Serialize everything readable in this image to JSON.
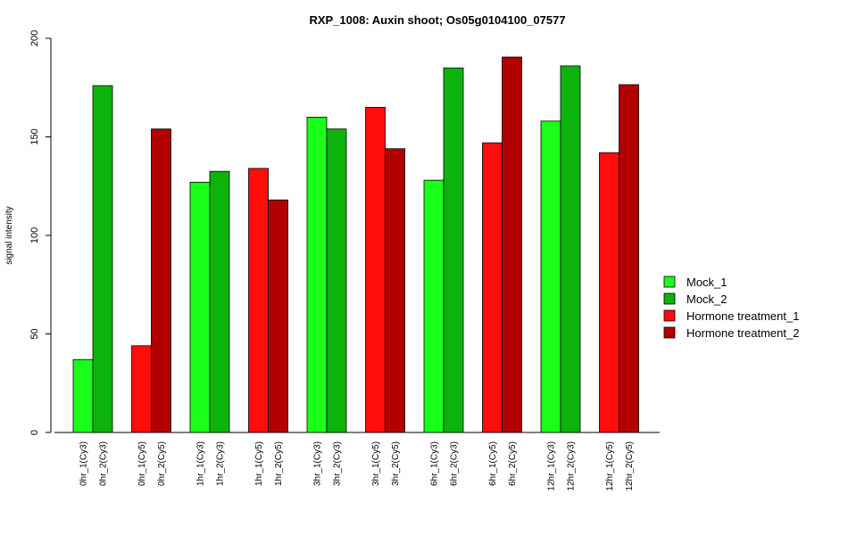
{
  "chart_data": {
    "type": "bar",
    "title": "RXP_1008: Auxin shoot; Os05g0104100_07577",
    "xlabel": "",
    "ylabel": "signal intensity",
    "ylim": [
      0,
      200
    ],
    "yticks": [
      0,
      50,
      100,
      150,
      200
    ],
    "legend_position": "right",
    "series": [
      {
        "name": "Mock_1",
        "color": "#1aff1a"
      },
      {
        "name": "Mock_2",
        "color": "#0db30d"
      },
      {
        "name": "Hormone treatment_1",
        "color": "#ff0d0d"
      },
      {
        "name": "Hormone treatment_2",
        "color": "#b30000"
      }
    ],
    "groups": [
      {
        "bars": [
          {
            "label": "0hr_1(Cy3)",
            "series": 0,
            "value": 37
          },
          {
            "label": "0hr_2(Cy3)",
            "series": 1,
            "value": 176
          }
        ]
      },
      {
        "bars": [
          {
            "label": "0hr_1(Cy5)",
            "series": 2,
            "value": 44
          },
          {
            "label": "0hr_2(Cy5)",
            "series": 3,
            "value": 154
          }
        ]
      },
      {
        "bars": [
          {
            "label": "1hr_1(Cy3)",
            "series": 0,
            "value": 127
          },
          {
            "label": "1hr_2(Cy3)",
            "series": 1,
            "value": 132.5
          }
        ]
      },
      {
        "bars": [
          {
            "label": "1hr_1(Cy5)",
            "series": 2,
            "value": 134
          },
          {
            "label": "1hr_2(Cy5)",
            "series": 3,
            "value": 118
          }
        ]
      },
      {
        "bars": [
          {
            "label": "3hr_1(Cy3)",
            "series": 0,
            "value": 160
          },
          {
            "label": "3hr_2(Cy3)",
            "series": 1,
            "value": 154
          }
        ]
      },
      {
        "bars": [
          {
            "label": "3hr_1(Cy5)",
            "series": 2,
            "value": 165
          },
          {
            "label": "3hr_2(Cy5)",
            "series": 3,
            "value": 144
          }
        ]
      },
      {
        "bars": [
          {
            "label": "6hr_1(Cy3)",
            "series": 0,
            "value": 128
          },
          {
            "label": "6hr_2(Cy3)",
            "series": 1,
            "value": 185
          }
        ]
      },
      {
        "bars": [
          {
            "label": "6hr_1(Cy5)",
            "series": 2,
            "value": 147
          },
          {
            "label": "6hr_2(Cy5)",
            "series": 3,
            "value": 190.5
          }
        ]
      },
      {
        "bars": [
          {
            "label": "12hr_1(Cy3)",
            "series": 0,
            "value": 158
          },
          {
            "label": "12hr_2(Cy3)",
            "series": 1,
            "value": 186
          }
        ]
      },
      {
        "bars": [
          {
            "label": "12hr_1(Cy5)",
            "series": 2,
            "value": 142
          },
          {
            "label": "12hr_2(Cy5)",
            "series": 3,
            "value": 176.5
          }
        ]
      }
    ]
  }
}
